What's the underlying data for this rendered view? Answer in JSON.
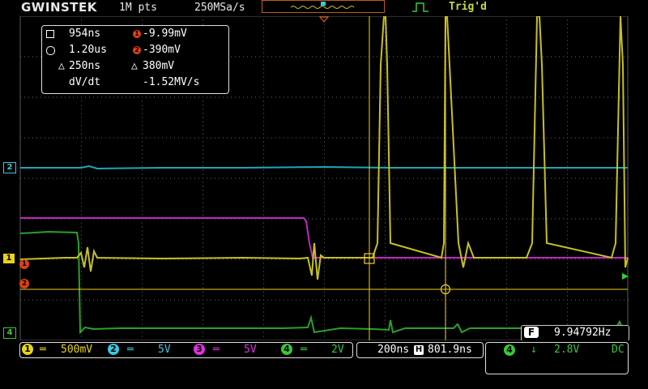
{
  "header": {
    "brand": "GWINSTEK",
    "record_length": "1M pts",
    "sample_rate": "250MSa/s",
    "trigger_status": "Trig'd"
  },
  "measurement": {
    "cursor1_time": "954ns",
    "cursor1_value": "-9.99mV",
    "cursor2_time": "1.20us",
    "cursor2_value": "-390mV",
    "delta_time": "250ns",
    "delta_value": "380mV",
    "dvdt_label": "dV/dt",
    "dvdt_value": "-1.52MV/s"
  },
  "frequency": {
    "label": "F",
    "value": "9.94792Hz"
  },
  "channels": [
    {
      "id": "1",
      "scale": "500mV",
      "color": "#e8d418"
    },
    {
      "id": "2",
      "scale": "5V",
      "color": "#38c8e0"
    },
    {
      "id": "3",
      "scale": "5V",
      "color": "#e030e0"
    },
    {
      "id": "4",
      "scale": "2V",
      "color": "#38c838"
    }
  ],
  "timebase": {
    "scale": "200ns",
    "h_label": "H",
    "position": "801.9ns"
  },
  "trigger": {
    "source": "4",
    "level": "2.8V",
    "coupling": "DC"
  },
  "markers": {
    "ch1": "1",
    "ch2": "2",
    "ch4": "4"
  },
  "colors": {
    "grid": "#5a5a5a",
    "cursor": "#f0d020",
    "ch1": "#c8c020",
    "ch2": "#20a8b8",
    "ch3": "#c028c0",
    "ch4": "#30a030"
  }
}
